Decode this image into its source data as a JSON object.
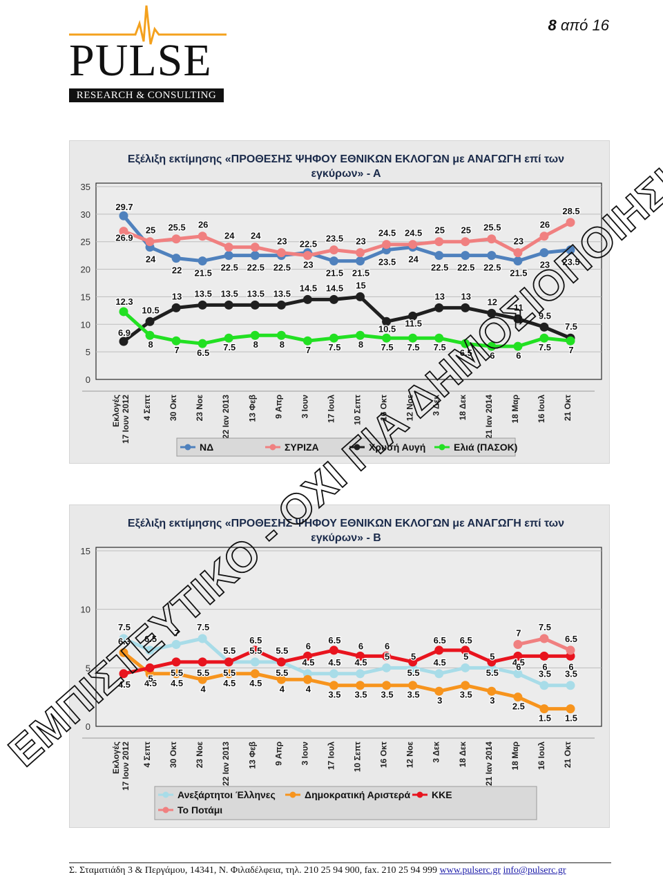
{
  "header": {
    "logo_word": "PULSE",
    "logo_sub": "RESEARCH & CONSULTING",
    "page_current": "8",
    "page_sep": "από",
    "page_total": "16"
  },
  "watermark": "ΕΜΠΙΣΤΕΥΤΙΚΟ - ΟΧΙ ΓΙΑ ΔΗΜΟΣΙΟΠΟΙΗΣΗ",
  "footer": {
    "address": "Σ. Σταματιάδη 3 & Περγάμου, 14341, Ν. Φιλαδέλφεια, τηλ. 210 25 94 900, fax. 210 25 94 999",
    "web": "www.pulserc.gr",
    "email": "info@pulserc.gr"
  },
  "chart_data": [
    {
      "type": "line",
      "title": "Εξέλιξη εκτίμησης «ΠΡΟΘΕΣΗΣ ΨΗΦΟΥ ΕΘΝΙΚΩΝ ΕΚΛΟΓΩΝ με ΑΝΑΓΩΓΗ επί των εγκύρων» - Α",
      "categories": [
        "Εκλογές 17 Ιουν 2012",
        "4 Σεπτ",
        "30 Οκτ",
        "23 Νοε",
        "22 Ιαν 2013",
        "13 Φεβ",
        "9 Απρ",
        "3 Ιουν",
        "17 Ιουλ",
        "10 Σεπτ",
        "16 Οκτ",
        "12 Νοε",
        "3 Δεκ",
        "18 Δεκ",
        "21 Ιαν 2014",
        "18 Μαρ",
        "16 Ιουλ",
        "21 Οκτ"
      ],
      "ylim": [
        0,
        35
      ],
      "yticks": [
        0,
        5,
        10,
        15,
        20,
        25,
        30,
        35
      ],
      "grid": true,
      "legend": "bottom",
      "series": [
        {
          "name": "ΝΔ",
          "color": "#4f81bd",
          "values": [
            29.7,
            24,
            22,
            21.5,
            22.5,
            22.5,
            22.5,
            23,
            21.5,
            21.5,
            23.5,
            24,
            22.5,
            22.5,
            22.5,
            21.5,
            23,
            23.5
          ]
        },
        {
          "name": "ΣΥΡΙΖΑ",
          "color": "#f08080",
          "values": [
            26.9,
            25,
            25.5,
            26,
            24,
            24,
            23,
            22.5,
            23.5,
            23,
            24.5,
            24.5,
            25,
            25,
            25.5,
            23,
            26,
            28.5
          ]
        },
        {
          "name": "Χρυσή Αυγή",
          "color": "#1f1f1f",
          "values": [
            6.9,
            10.5,
            13,
            13.5,
            13.5,
            13.5,
            13.5,
            14.5,
            14.5,
            15,
            10.5,
            11.5,
            13,
            13,
            12,
            11,
            9.5,
            7.5
          ]
        },
        {
          "name": "Ελιά (ΠΑΣΟΚ)",
          "color": "#22e022",
          "values": [
            12.3,
            8,
            7,
            6.5,
            7.5,
            8,
            8,
            7,
            7.5,
            8,
            7.5,
            7.5,
            7.5,
            6.5,
            6,
            6,
            7.5,
            7
          ]
        }
      ]
    },
    {
      "type": "line",
      "title": "Εξέλιξη εκτίμησης «ΠΡΟΘΕΣΗΣ ΨΗΦΟΥ ΕΘΝΙΚΩΝ ΕΚΛΟΓΩΝ με ΑΝΑΓΩΓΗ επί των εγκύρων» - Β",
      "categories": [
        "Εκλογές 17 Ιουν 2012",
        "4 Σεπτ",
        "30 Οκτ",
        "23 Νοε",
        "22 Ιαν 2013",
        "13 Φεβ",
        "9 Απρ",
        "3 Ιουν",
        "17 Ιουλ",
        "10 Σεπτ",
        "16 Οκτ",
        "12 Νοε",
        "3 Δεκ",
        "18 Δεκ",
        "21 Ιαν 2014",
        "18 Μαρ",
        "16 Ιουλ",
        "21 Οκτ"
      ],
      "ylim": [
        0,
        15
      ],
      "yticks": [
        0,
        5,
        10,
        15
      ],
      "grid": true,
      "legend": "bottom",
      "series": [
        {
          "name": "Ανεξάρτητοι Έλληνες",
          "color": "#a8dce8",
          "values": [
            7.5,
            6.5,
            7,
            7.5,
            5.5,
            5.5,
            5.5,
            4.5,
            4.5,
            4.5,
            5,
            5,
            4.5,
            5,
            5,
            4.5,
            3.5,
            3.5
          ]
        },
        {
          "name": "Δημοκρατική Αριστερά",
          "color": "#f7941d",
          "values": [
            6.3,
            4.5,
            4.5,
            4,
            4.5,
            4.5,
            4,
            4,
            3.5,
            3.5,
            3.5,
            3.5,
            3,
            3.5,
            3,
            2.5,
            1.5,
            1.5
          ]
        },
        {
          "name": "ΚΚΕ",
          "color": "#e8141e",
          "values": [
            4.5,
            5,
            5.5,
            5.5,
            5.5,
            6.5,
            5.5,
            6,
            6.5,
            6,
            6,
            5.5,
            6.5,
            6.5,
            5.5,
            6,
            6,
            6
          ]
        },
        {
          "name": "Το Ποτάμι",
          "color": "#f08080",
          "values": [
            null,
            null,
            null,
            null,
            null,
            null,
            null,
            null,
            null,
            null,
            null,
            null,
            null,
            null,
            null,
            7,
            7.5,
            6.5
          ]
        }
      ]
    }
  ]
}
